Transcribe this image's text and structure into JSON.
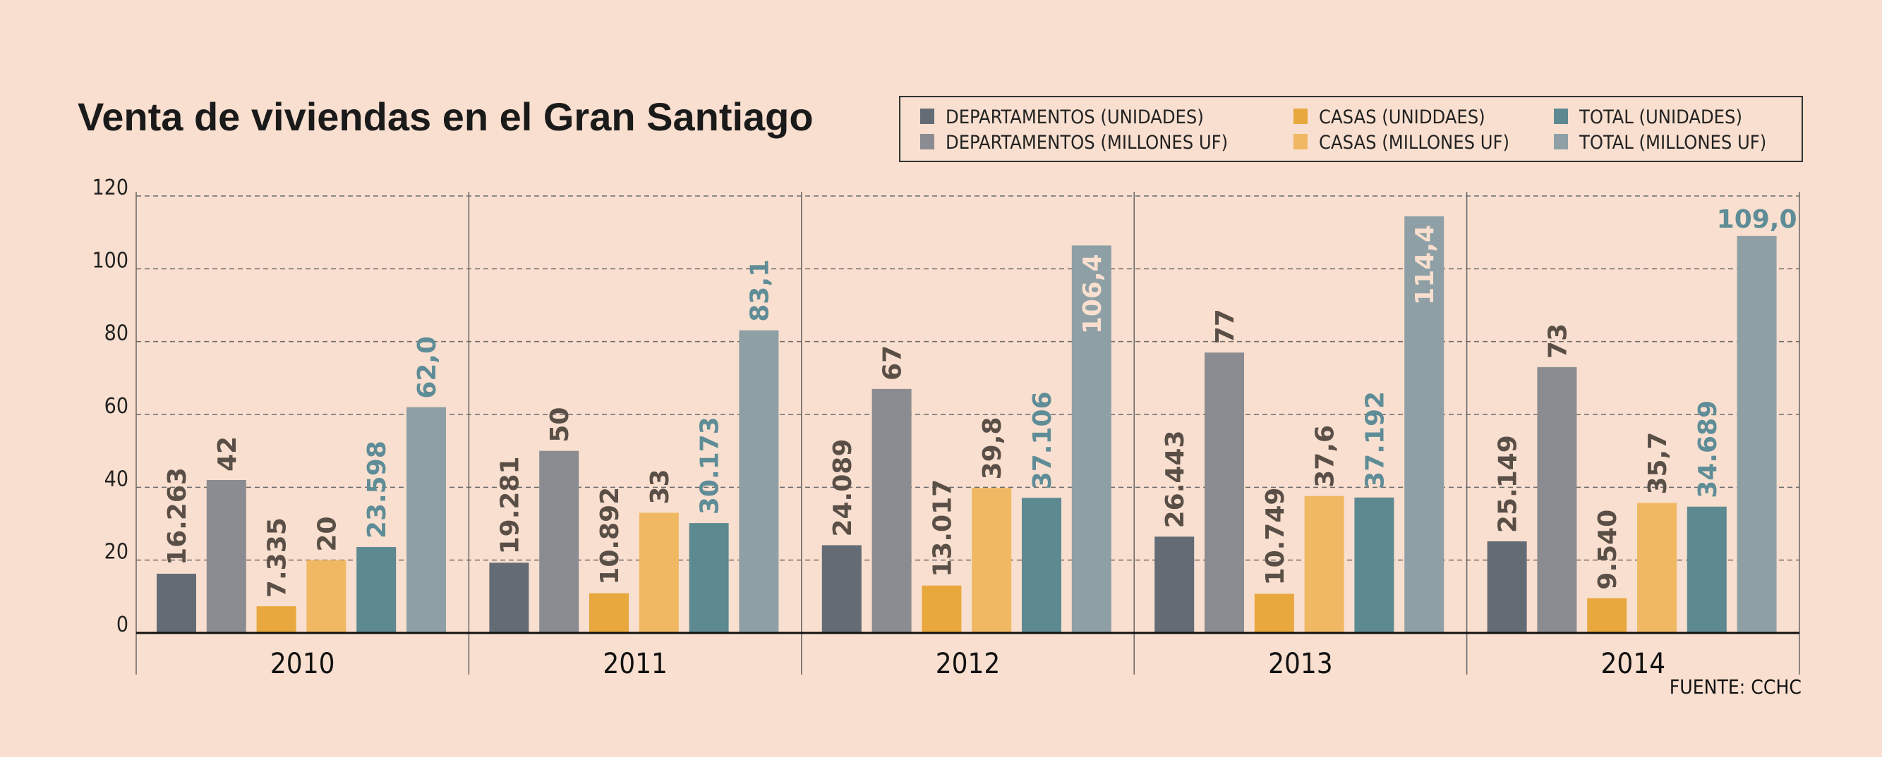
{
  "chart_data": {
    "type": "bar",
    "title": "Venta de viviendas en el Gran Santiago",
    "source": "FUENTE: CCHC",
    "categories": [
      "2010",
      "2011",
      "2012",
      "2013",
      "2014"
    ],
    "ylim": [
      0,
      120
    ],
    "yticks": [
      0,
      20,
      40,
      60,
      80,
      100,
      120
    ],
    "grid": true,
    "legend_position": "top-right",
    "series": [
      {
        "name": "DEPARTAMENTOS (UNIDADES)",
        "color": "#636b75",
        "label_color": "#5a4f47",
        "values": [
          16.263,
          19.281,
          24.089,
          26.443,
          25.149
        ],
        "labels": [
          "16.263",
          "19.281",
          "24.089",
          "26.443",
          "25.149"
        ]
      },
      {
        "name": "DEPARTAMENTOS (MILLONES UF)",
        "color": "#8a8c91",
        "label_color": "#5a4f47",
        "values": [
          42,
          50,
          67,
          77,
          73
        ],
        "labels": [
          "42",
          "50",
          "67",
          "77",
          "73"
        ]
      },
      {
        "name": "CASAS (UNIDDAES)",
        "color": "#e8a83e",
        "label_color": "#5a4f47",
        "values": [
          7.335,
          10.892,
          13.017,
          10.749,
          9.54
        ],
        "labels": [
          "7.335",
          "10.892",
          "13.017",
          "10.749",
          "9.540"
        ]
      },
      {
        "name": "CASAS (MILLONES UF)",
        "color": "#f0b862",
        "label_color": "#5a4f47",
        "values": [
          20,
          33,
          39.8,
          37.6,
          35.7
        ],
        "labels": [
          "20",
          "33",
          "39,8",
          "37,6",
          "35,7"
        ]
      },
      {
        "name": "TOTAL (UNIDADES)",
        "color": "#5d8990",
        "label_color": "#5f8d97",
        "values": [
          23.598,
          30.173,
          37.106,
          37.192,
          34.689
        ],
        "labels": [
          "23.598",
          "30.173",
          "37.106",
          "37.192",
          "34.689"
        ]
      },
      {
        "name": "TOTAL (MILLONES UF)",
        "color": "#8ea0a5",
        "label_color": "#5f8d97",
        "values": [
          62.0,
          83.1,
          106.4,
          114.4,
          109.0
        ],
        "labels": [
          "62,0",
          "83,1",
          "106,4",
          "114,4",
          "109,0"
        ]
      }
    ]
  }
}
